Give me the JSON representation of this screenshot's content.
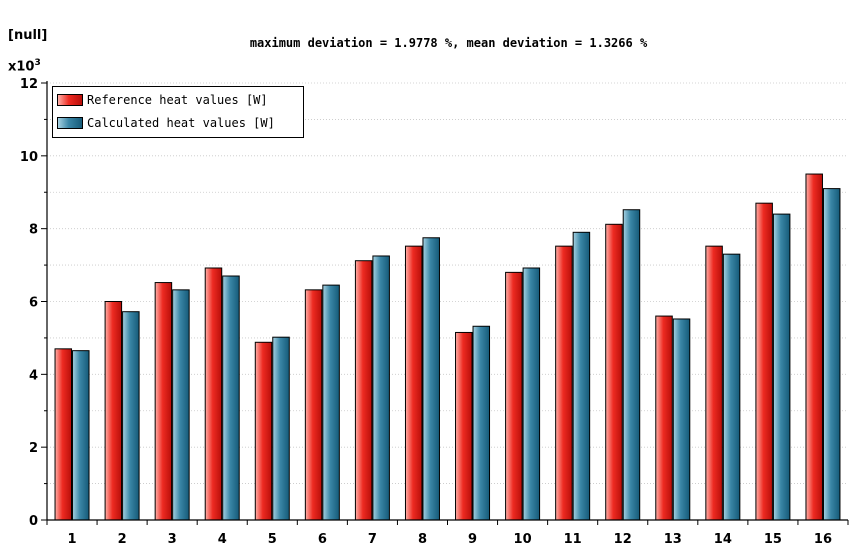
{
  "chart_data": {
    "type": "bar",
    "title": "maximum deviation = 1.9778 %, mean deviation = 1.3266 %",
    "ylabel": "[null]",
    "y_scale_label": "x10",
    "y_scale_exponent": "3",
    "y_multiplier": 1000,
    "ylim": [
      0,
      12
    ],
    "yticks": [
      "0",
      "2",
      "4",
      "6",
      "8",
      "10",
      "12"
    ],
    "grid": "horizontal dotted",
    "legend_position": "top-left",
    "categories": [
      "1",
      "2",
      "3",
      "4",
      "5",
      "6",
      "7",
      "8",
      "9",
      "10",
      "11",
      "12",
      "13",
      "14",
      "15",
      "16"
    ],
    "series": [
      {
        "name": "Reference heat values [W]",
        "color": "#ee2b22",
        "values": [
          4.7,
          6.0,
          6.52,
          6.92,
          4.88,
          6.32,
          7.12,
          7.52,
          5.15,
          6.8,
          7.52,
          8.12,
          5.6,
          7.52,
          8.7,
          9.5
        ]
      },
      {
        "name": "Calculated heat values [W]",
        "color": "#2f7c9c",
        "values": [
          4.65,
          5.72,
          6.32,
          6.7,
          5.02,
          6.45,
          7.25,
          7.75,
          5.32,
          6.92,
          7.9,
          8.52,
          5.52,
          7.3,
          8.4,
          9.1
        ]
      }
    ]
  }
}
